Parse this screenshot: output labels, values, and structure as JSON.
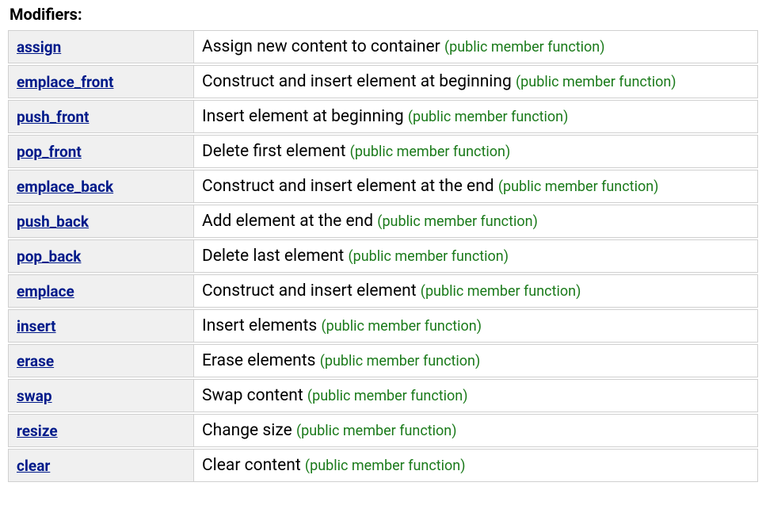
{
  "section_title": "Modifiers:",
  "annotation": "(public member function)",
  "colors": {
    "link": "#001a8a",
    "annotation": "#1a7a1a",
    "name_bg": "#f0f0f0",
    "border": "#d0d0d0",
    "text": "#000000",
    "bg": "#ffffff"
  },
  "rows": [
    {
      "name": "assign",
      "desc": "Assign new content to container "
    },
    {
      "name": "emplace_front",
      "desc": "Construct and insert element at beginning "
    },
    {
      "name": "push_front",
      "desc": "Insert element at beginning "
    },
    {
      "name": "pop_front",
      "desc": "Delete first element "
    },
    {
      "name": "emplace_back",
      "desc": "Construct and insert element at the end "
    },
    {
      "name": "push_back",
      "desc": "Add element at the end "
    },
    {
      "name": "pop_back",
      "desc": "Delete last element "
    },
    {
      "name": "emplace",
      "desc": "Construct and insert element "
    },
    {
      "name": "insert",
      "desc": "Insert elements "
    },
    {
      "name": "erase",
      "desc": "Erase elements "
    },
    {
      "name": "swap",
      "desc": "Swap content "
    },
    {
      "name": "resize",
      "desc": "Change size "
    },
    {
      "name": "clear",
      "desc": "Clear content "
    }
  ]
}
